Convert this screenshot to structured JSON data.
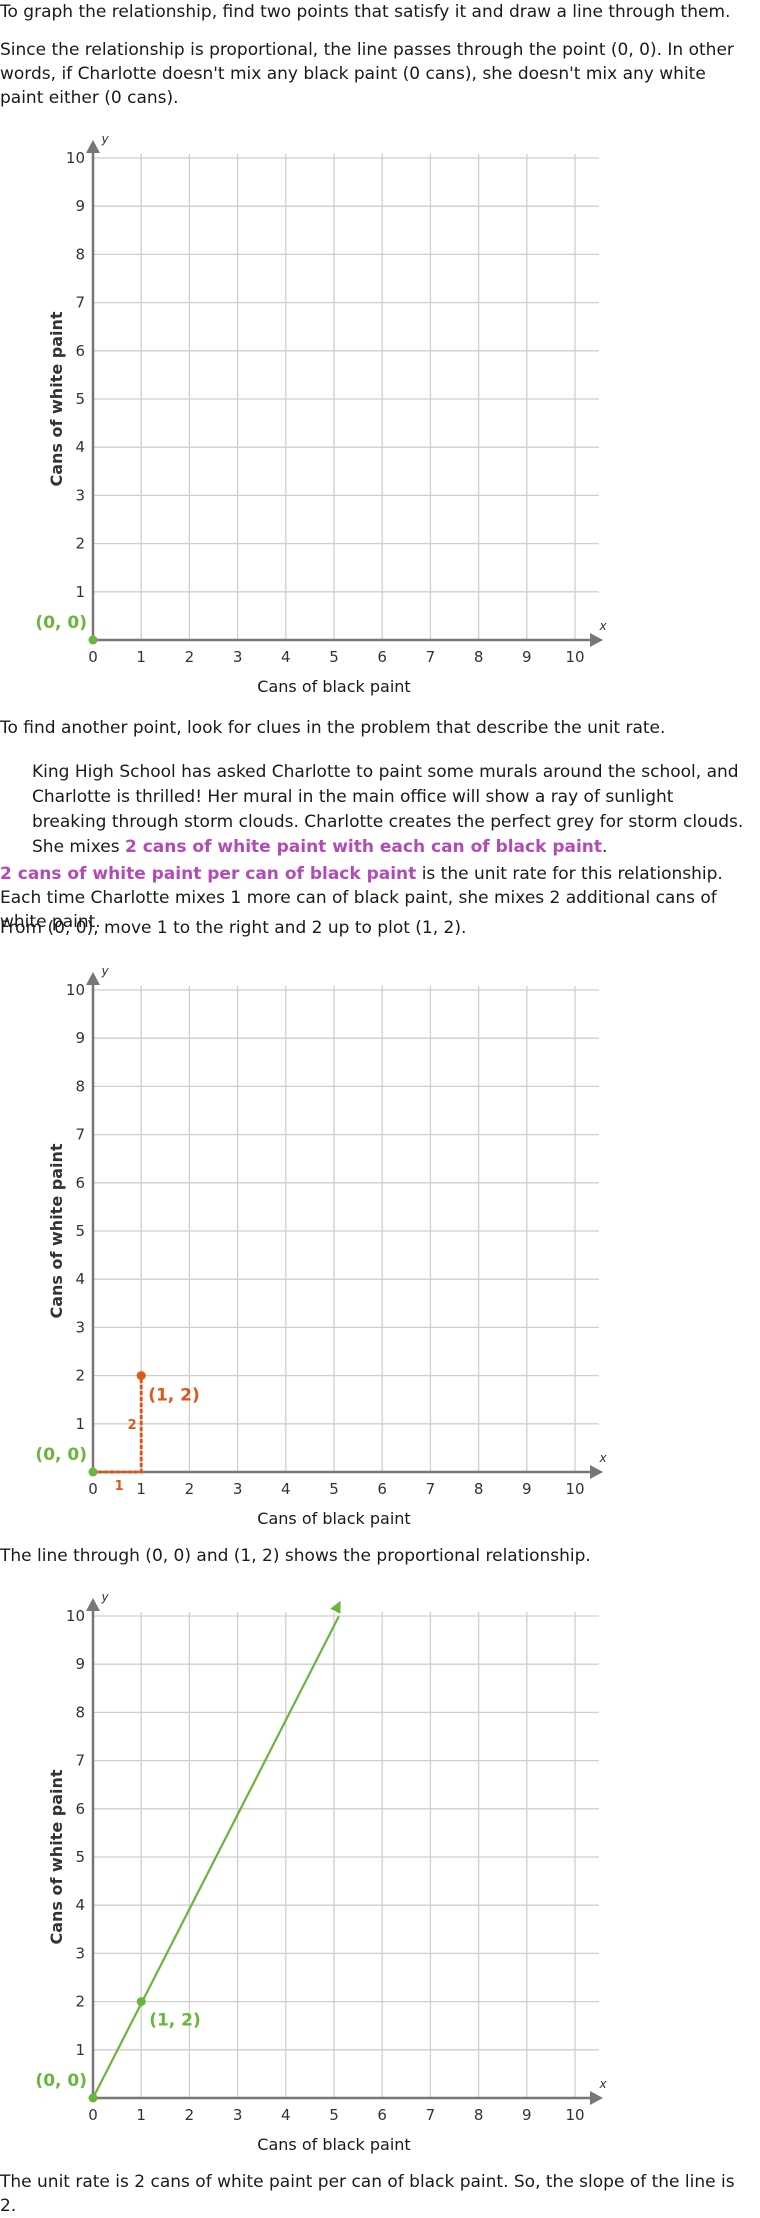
{
  "paragraphs": {
    "p1": "To graph the relationship, find two points that satisfy it and draw a line through them.",
    "p2": "Since the relationship is proportional, the line passes through the point (0, 0). In other words, if Charlotte doesn't mix any black paint (0 cans), she doesn't mix any white paint either (0 cans).",
    "p3": "To find another point, look for clues in the problem that describe the unit rate.",
    "quote_before": "King High School has asked Charlotte to paint some murals around the school, and Charlotte is thrilled! Her mural in the main office will show a ray of sunlight breaking through storm clouds. Charlotte creates the perfect grey for storm clouds. She mixes ",
    "quote_highlight": "2 cans of white paint with each can of black paint",
    "quote_after": ".",
    "p4_highlight": "2 cans of white paint per can of black paint",
    "p4_rest": " is the unit rate for this relationship. Each time Charlotte mixes 1 more can of black paint, she mixes 2 additional cans of white paint.",
    "p5": "From (0, 0), move 1 to the right and 2 up to plot (1, 2).",
    "p6": "The line through (0, 0) and (1, 2) shows the proportional relationship.",
    "p7": "The unit rate is 2 cans of white paint per can of black paint. So, the slope of the line is 2."
  },
  "colors": {
    "green": "#6ab53b",
    "orange": "#e0561a",
    "highlight": "#b44ab8",
    "grid": "#cfcfcf",
    "axis": "#777777"
  },
  "chart_data": [
    {
      "type": "scatter",
      "xlabel": "Cans of black paint",
      "ylabel": "Cans of white paint",
      "x_axis_name": "x",
      "y_axis_name": "y",
      "xlim": [
        0,
        10
      ],
      "ylim": [
        0,
        10
      ],
      "grid": true,
      "x_ticks": [
        "0",
        "1",
        "2",
        "3",
        "4",
        "5",
        "6",
        "7",
        "8",
        "9",
        "10"
      ],
      "y_ticks": [
        "1",
        "2",
        "3",
        "4",
        "5",
        "6",
        "7",
        "8",
        "9",
        "10"
      ],
      "points": [
        {
          "x": 0,
          "y": 0,
          "label": "(0, 0)",
          "color": "#6ab53b"
        }
      ]
    },
    {
      "type": "scatter",
      "xlabel": "Cans of black paint",
      "ylabel": "Cans of white paint",
      "x_axis_name": "x",
      "y_axis_name": "y",
      "xlim": [
        0,
        10
      ],
      "ylim": [
        0,
        10
      ],
      "grid": true,
      "x_ticks": [
        "0",
        "1",
        "2",
        "3",
        "4",
        "5",
        "6",
        "7",
        "8",
        "9",
        "10"
      ],
      "y_ticks": [
        "1",
        "2",
        "3",
        "4",
        "5",
        "6",
        "7",
        "8",
        "9",
        "10"
      ],
      "points": [
        {
          "x": 0,
          "y": 0,
          "label": "(0, 0)",
          "color": "#6ab53b"
        },
        {
          "x": 1,
          "y": 2,
          "label": "(1, 2)",
          "color": "#e0561a"
        }
      ],
      "run": {
        "from": [
          0,
          0
        ],
        "to": [
          1,
          0
        ],
        "label": "1"
      },
      "rise": {
        "from": [
          1,
          0
        ],
        "to": [
          1,
          2
        ],
        "label": "2"
      }
    },
    {
      "type": "line",
      "xlabel": "Cans of black paint",
      "ylabel": "Cans of white paint",
      "x_axis_name": "x",
      "y_axis_name": "y",
      "xlim": [
        0,
        10
      ],
      "ylim": [
        0,
        10
      ],
      "grid": true,
      "x_ticks": [
        "0",
        "1",
        "2",
        "3",
        "4",
        "5",
        "6",
        "7",
        "8",
        "9",
        "10"
      ],
      "y_ticks": [
        "1",
        "2",
        "3",
        "4",
        "5",
        "6",
        "7",
        "8",
        "9",
        "10"
      ],
      "points": [
        {
          "x": 0,
          "y": 0,
          "label": "(0, 0)",
          "color": "#6ab53b"
        },
        {
          "x": 1,
          "y": 2,
          "label": "(1, 2)",
          "color": "#6ab53b"
        }
      ],
      "line": {
        "slope": 2,
        "intercept": 0,
        "color": "#6ab53b"
      }
    }
  ]
}
